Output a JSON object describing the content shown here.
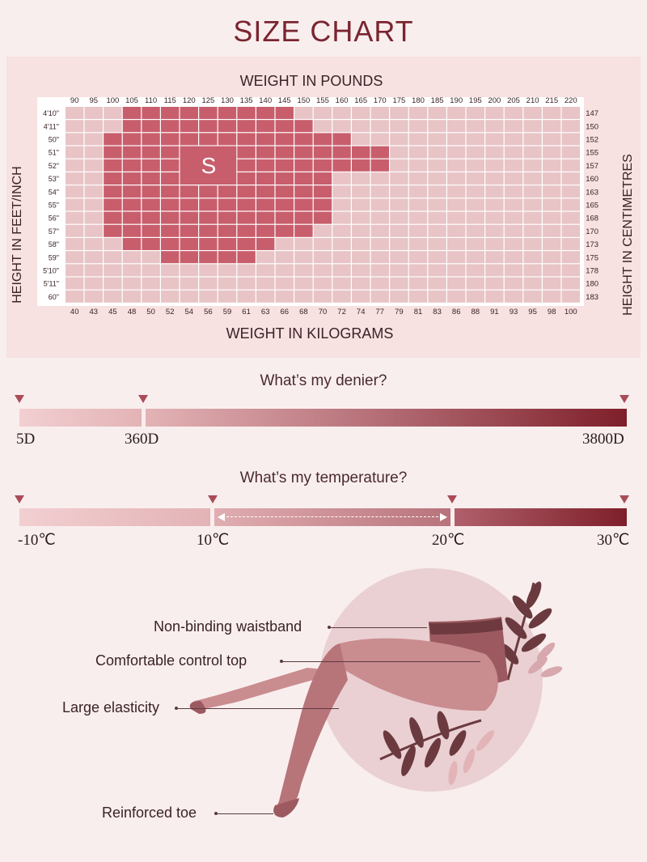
{
  "title": "SIZE CHART",
  "chart_data": {
    "type": "heatmap",
    "top_axis_title": "WEIGHT IN POUNDS",
    "bottom_axis_title": "WEIGHT IN KILOGRAMS",
    "left_axis_title": "HEIGHT IN FEET/INCH",
    "right_axis_title": "HEIGHT IN CENTIMETRES",
    "pounds": [
      "90",
      "95",
      "100",
      "105",
      "110",
      "115",
      "120",
      "125",
      "130",
      "135",
      "140",
      "145",
      "150",
      "155",
      "160",
      "165",
      "170",
      "175",
      "180",
      "185",
      "190",
      "195",
      "200",
      "205",
      "210",
      "215",
      "220"
    ],
    "kilograms": [
      "40",
      "43",
      "45",
      "48",
      "50",
      "52",
      "54",
      "56",
      "59",
      "61",
      "63",
      "66",
      "68",
      "70",
      "72",
      "74",
      "77",
      "79",
      "81",
      "83",
      "86",
      "88",
      "91",
      "93",
      "95",
      "98",
      "100"
    ],
    "heights_ft": [
      "4'10\"",
      "4'11\"",
      "50\"",
      "51\"",
      "52\"",
      "53\"",
      "54\"",
      "55\"",
      "56\"",
      "57\"",
      "58\"",
      "59\"",
      "5'10\"",
      "5'11\"",
      "60\""
    ],
    "heights_cm": [
      "147",
      "150",
      "152",
      "155",
      "157",
      "160",
      "163",
      "165",
      "168",
      "170",
      "173",
      "175",
      "178",
      "180",
      "183"
    ],
    "size_label": "S",
    "size_region_rows": [
      {
        "from": "105",
        "to": "145"
      },
      {
        "from": "105",
        "to": "150"
      },
      {
        "from": "100",
        "to": "160"
      },
      {
        "from": "100",
        "to": "170"
      },
      {
        "from": "100",
        "to": "170"
      },
      {
        "from": "100",
        "to": "155"
      },
      {
        "from": "100",
        "to": "155"
      },
      {
        "from": "100",
        "to": "155"
      },
      {
        "from": "100",
        "to": "155"
      },
      {
        "from": "100",
        "to": "150"
      },
      {
        "from": "105",
        "to": "140"
      },
      {
        "from": "115",
        "to": "135"
      },
      null,
      null,
      null
    ],
    "colors": {
      "region": "#c85e6c",
      "empty": "#e8c4c6",
      "label": "#ffffff"
    }
  },
  "denier": {
    "title": "What’s my denier?",
    "labels": [
      "5D",
      "360D",
      "3800D"
    ],
    "colors": [
      "#f2c8ca",
      "#e5b6b9",
      "#7e1f2a"
    ]
  },
  "temperature": {
    "title": "What’s my temperature?",
    "labels": [
      "-10℃",
      "10℃",
      "20℃",
      "30℃"
    ],
    "colors": [
      "#f2c8ca",
      "#e5b6b9",
      "#a8505c",
      "#7e1f2a"
    ]
  },
  "features": {
    "waistband": "Non-binding waistband",
    "control_top": "Comfortable control top",
    "elasticity": "Large elasticity",
    "toe": "Reinforced toe"
  }
}
